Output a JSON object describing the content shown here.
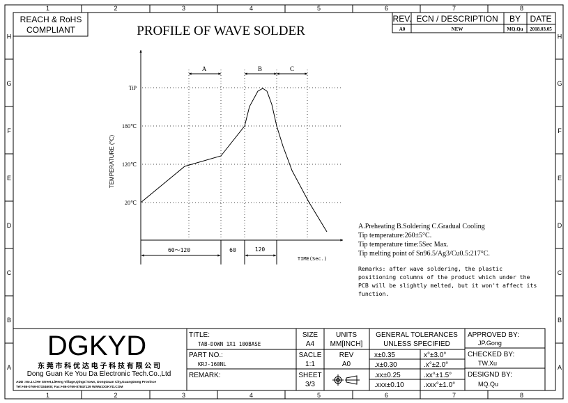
{
  "border": {
    "columns": [
      "1",
      "2",
      "3",
      "4",
      "5",
      "6",
      "7",
      "8"
    ],
    "rows": [
      "H",
      "G",
      "F",
      "E",
      "D",
      "C",
      "B",
      "A"
    ]
  },
  "compliance": {
    "line1": "REACH & RoHS",
    "line2": "COMPLIANT"
  },
  "title": "PROFILE OF WAVE SOLDER",
  "revision_table": {
    "headers": [
      "REV.",
      "ECN / DESCRIPTION",
      "BY",
      "DATE"
    ],
    "rows": [
      [
        "A0",
        "NEW",
        "MQ.Qu",
        "2018.03.05"
      ]
    ]
  },
  "diagram": {
    "y_axis_label": "TEMPERATURE (℃)",
    "x_axis_label": "TIME(Sec.)",
    "y_ticks": [
      "TiP",
      "180℃",
      "120℃",
      "20℃"
    ],
    "zones": [
      "A",
      "B",
      "C"
    ],
    "durations": [
      "60～120",
      "60",
      "120"
    ]
  },
  "notes": {
    "legend": "A.Preheating  B.Soldering  C.Gradual Cooling",
    "lines": [
      "Tip temperature:260±5°C.",
      "Tip temperature time:5Sec Max.",
      "Tip melting point of Sn96.5/Ag3/Cu0.5:217°C."
    ],
    "remarks": [
      "Remarks: after wave soldering, the plastic",
      "positioning columns of the product  which under the",
      "PCB will be slightly melted, but it won't affect its",
      "function."
    ]
  },
  "title_block": {
    "logo": "DGKYD",
    "company_cn": "东 莞 市 科 优 达 电 子 科 技 有 限 公 司",
    "company_en": "Dong Guan Ke You Da Electronic Tech.Co.,Ltd",
    "address": "ADD :No.1 LiHe Street,LiHeng Village,Qingxi town, DongGuan City,GuangDong Province",
    "contact": "Tel:+86-0769-87334608; Fax:+86-0769-87847129  WWW.DGKYD.COM",
    "title_label": "TITLE:",
    "title_value": "TAB-DOWN 1X1 100BASE",
    "part_label": "PART NO.:",
    "part_value": "KRJ-160NL",
    "remark_label": "REMARK:",
    "size_label": "SIZE",
    "size_value": "A4",
    "units_label": "UNITS",
    "units_value": "MM[INCH]",
    "scale_label": "SACLE",
    "scale_value": "1:1",
    "rev_label": "REV",
    "rev_value": "A0",
    "sheet_label": "SHEET",
    "sheet_value": "3/3",
    "tol_title1": "GENERAL TOLERANCES",
    "tol_title2": "UNLESS SPECIFIED",
    "tolerances": [
      [
        "x±0.35",
        "x°±3.0°"
      ],
      [
        ".x±0.30",
        ".x°±2.0°"
      ],
      [
        ".xx±0.25",
        ".xx°±1.5°"
      ],
      [
        ".xxx±0.10",
        ".xxx°±1.0°"
      ]
    ],
    "approved_label": "APPROVED BY:",
    "approved_value": "JP.Gong",
    "checked_label": "CHECKED BY:",
    "checked_value": "TW.Xu",
    "designed_label": "DESIGND BY:",
    "designed_value": "MQ.Qu"
  }
}
